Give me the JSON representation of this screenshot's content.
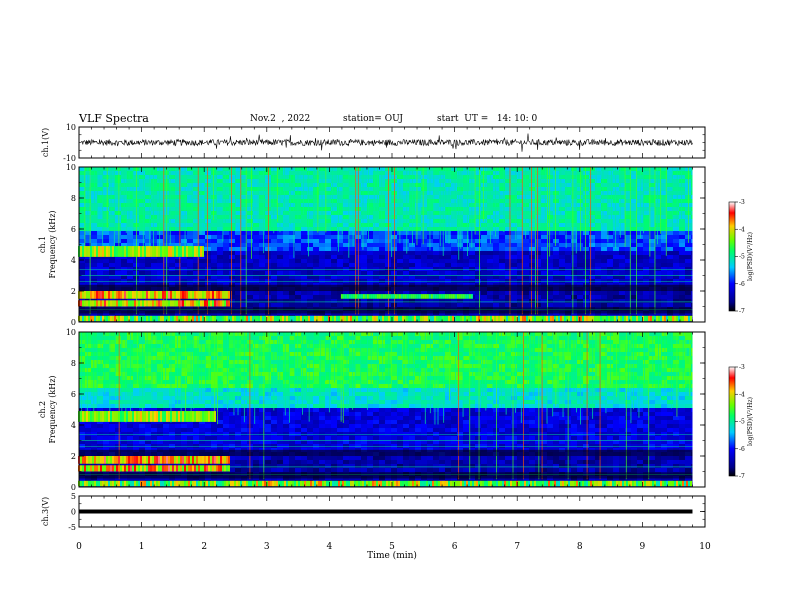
{
  "header": {
    "title": "VLF Spectra",
    "date": "Nov.2  , 2022",
    "station": "station= OUJ",
    "start": "start  UT =   14: 10: 0"
  },
  "chart_data": [
    {
      "type": "line",
      "panel": "ch1-waveform",
      "ylabel": "ch.1(V)",
      "ylim": [
        -10,
        10
      ],
      "ytick_labels": [
        "10",
        "-10"
      ],
      "xlim": [
        0,
        10
      ],
      "approx_signal_level_V": 0,
      "approx_noise_amplitude_V": 2,
      "signal_end_min": 9.8
    },
    {
      "type": "heatmap",
      "panel": "ch1-spectrogram",
      "ylabel": "ch.1\nFrequency  (kHz)",
      "ylim": [
        0,
        10
      ],
      "ytick_labels": [
        "0",
        "2",
        "4",
        "6",
        "8",
        "10"
      ],
      "xlim": [
        0,
        10
      ],
      "data_end_min": 9.8,
      "colorbar": {
        "label": "log(PSD)(V²/Hz)",
        "range": [
          -7,
          -3
        ],
        "tick_labels": [
          "-3",
          "-4",
          "-5",
          "-6",
          "-7"
        ]
      },
      "features": {
        "band_4_5kHz_until_min": 2.0,
        "band_1_2kHz_until_min": 2.4,
        "band_1_6kHz_from_min": 4.2,
        "band_1_6kHz_to_min": 6.3
      }
    },
    {
      "type": "heatmap",
      "panel": "ch2-spectrogram",
      "ylabel": "ch.2\nFrequency  (kHz)",
      "ylim": [
        0,
        10
      ],
      "ytick_labels": [
        "0",
        "2",
        "4",
        "6",
        "8",
        "10"
      ],
      "xlim": [
        0,
        10
      ],
      "data_end_min": 9.8,
      "colorbar": {
        "label": "log(PSD)(V²/Hz)",
        "range": [
          -7,
          -3
        ],
        "tick_labels": [
          "-3",
          "-4",
          "-5",
          "-6",
          "-7"
        ]
      },
      "features": {
        "band_4_5kHz_until_min": 2.2,
        "band_1_2kHz_until_min": 2.4
      }
    },
    {
      "type": "line",
      "panel": "ch3-waveform",
      "ylabel": "ch.3(V)",
      "ylim": [
        -5,
        5
      ],
      "ytick_labels": [
        "5",
        "0",
        "-5"
      ],
      "xlim": [
        0,
        10
      ],
      "approx_signal_level_V": 0,
      "signal_end_min": 9.8
    }
  ],
  "xaxis": {
    "label": "Time  (min)",
    "tick_labels": [
      "0",
      "1",
      "2",
      "3",
      "4",
      "5",
      "6",
      "7",
      "8",
      "9",
      "10"
    ]
  }
}
